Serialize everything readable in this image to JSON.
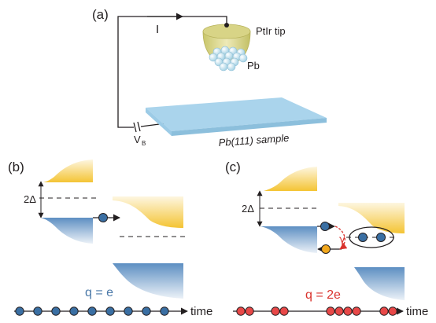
{
  "panel_a": {
    "label": "(a)",
    "current": "I",
    "tip": "PtIr tip",
    "tip_atoms": "Pb",
    "bias": "V",
    "bias_sub": "B",
    "sample": "Pb(111) sample"
  },
  "panel_b": {
    "label": "(b)",
    "gap": "2Δ",
    "charge": "q = e",
    "axis": "time",
    "event_count": 9
  },
  "panel_c": {
    "label": "(c)",
    "gap": "2Δ",
    "photon": "γ",
    "charge": "q = 2e",
    "axis": "time",
    "event_pairs": 5
  },
  "colors": {
    "single_electron": "#3a6fa3",
    "pair_electron": "#e84848",
    "hole": "#f2a81d",
    "occupied_dos": "#7ba5ce",
    "empty_dos": "#f4c434",
    "sample": "#a8d4ec",
    "charge_e_text": "#4a78a8",
    "charge_2e_text": "#d9322c"
  }
}
